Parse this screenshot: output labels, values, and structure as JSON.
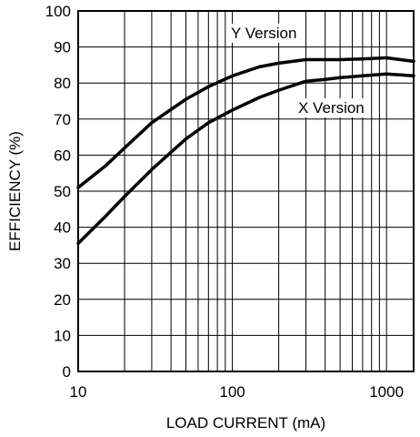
{
  "chart_data": {
    "type": "line",
    "xlabel": "LOAD CURRENT (mA)",
    "ylabel": "EFFICIENCY (%)",
    "x_scale": "log",
    "xlim": [
      10,
      1500
    ],
    "ylim": [
      0,
      100
    ],
    "x_ticks": [
      10,
      100,
      1000
    ],
    "x_tick_labels": [
      "10",
      "100",
      "1000"
    ],
    "y_ticks": [
      0,
      10,
      20,
      30,
      40,
      50,
      60,
      70,
      80,
      90,
      100
    ],
    "y_tick_labels": [
      "0",
      "10",
      "20",
      "30",
      "40",
      "50",
      "60",
      "70",
      "80",
      "90",
      "100"
    ],
    "grid": true,
    "series": [
      {
        "name": "Y Version",
        "x": [
          10,
          15,
          20,
          30,
          50,
          70,
          100,
          150,
          200,
          300,
          400,
          500,
          700,
          1000,
          1500
        ],
        "y": [
          51,
          57,
          62,
          69,
          75.5,
          79,
          82,
          84.5,
          85.5,
          86.5,
          86.5,
          86.5,
          86.7,
          87,
          86
        ]
      },
      {
        "name": "X Version",
        "x": [
          10,
          15,
          20,
          30,
          50,
          70,
          100,
          150,
          200,
          300,
          400,
          500,
          700,
          1000,
          1500
        ],
        "y": [
          35.5,
          43,
          48.5,
          56,
          64.5,
          69,
          72.5,
          76,
          78,
          80.5,
          81,
          81.5,
          82,
          82.5,
          82
        ]
      }
    ]
  }
}
